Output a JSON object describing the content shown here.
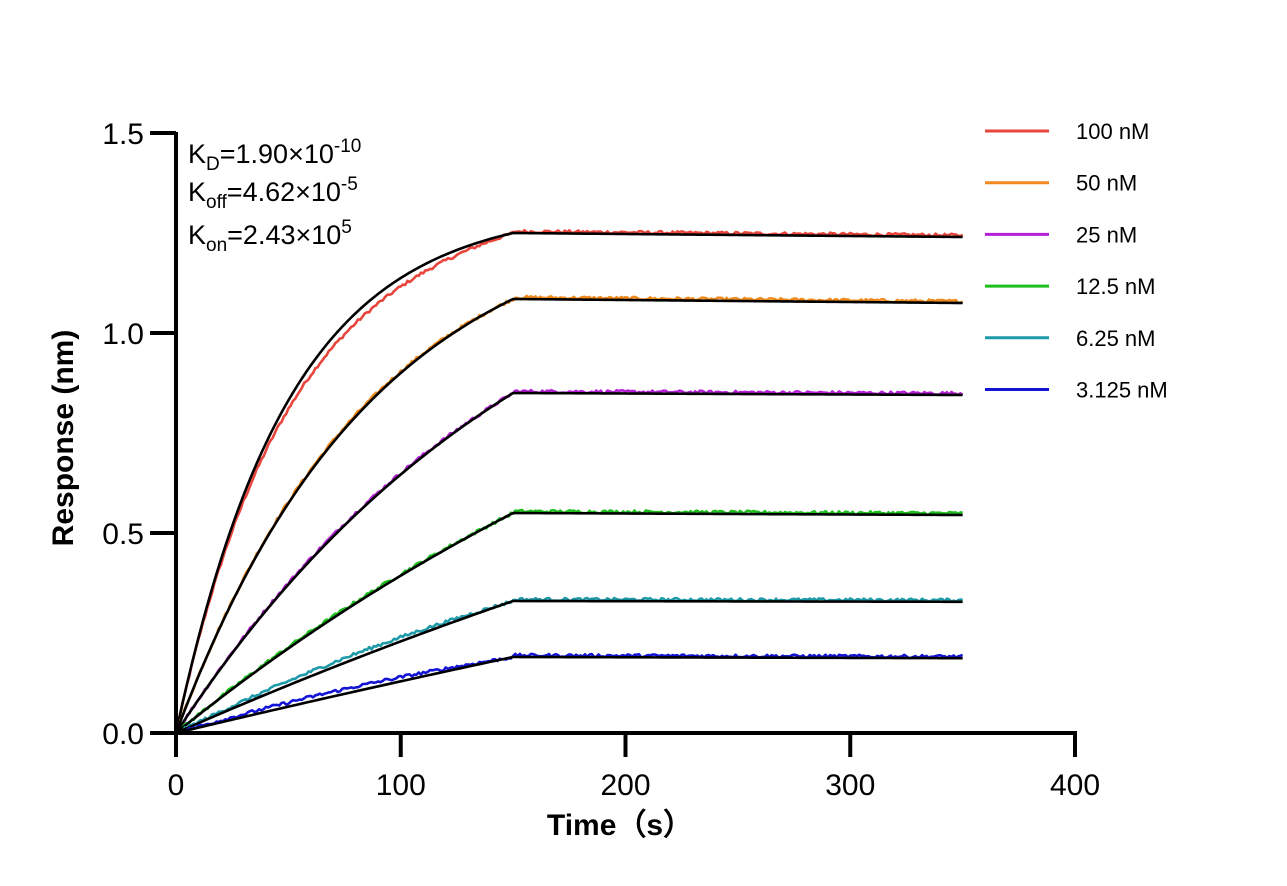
{
  "chart_data": {
    "type": "line",
    "title": "",
    "xlabel": "Time（s）",
    "ylabel": "Response (nm)",
    "xlim": [
      0,
      400
    ],
    "ylim": [
      0,
      1.5
    ],
    "xticks": [
      "0",
      "100",
      "200",
      "300",
      "400"
    ],
    "yticks": [
      "0.0",
      "0.5",
      "1.0",
      "1.5"
    ],
    "association_end": 150,
    "dissociation_end": 350,
    "legend_position": "top-right",
    "grid": false,
    "annotations": {
      "kd": {
        "main": "K",
        "sub": "D",
        "value": "=1.90×10",
        "exp": "-10"
      },
      "koff": {
        "main": "K",
        "sub": "off",
        "value": "=4.62×10",
        "exp": "-5"
      },
      "kon": {
        "main": "K",
        "sub": "on",
        "value": "=2.43×10",
        "exp": "5"
      }
    },
    "fit_color": "#000000",
    "series": [
      {
        "name": "100 nM",
        "color": "#e8453c",
        "plateau_end_of_association": 1.25,
        "end_of_dissociation": 1.24,
        "curvature": 3.0
      },
      {
        "name": "50 nM",
        "color": "#f08a1c",
        "plateau_end_of_association": 1.085,
        "end_of_dissociation": 1.075,
        "curvature": 1.7
      },
      {
        "name": "25 nM",
        "color": "#b51fd6",
        "plateau_end_of_association": 0.85,
        "end_of_dissociation": 0.845,
        "curvature": 0.9
      },
      {
        "name": "12.5 nM",
        "color": "#1cbf1c",
        "plateau_end_of_association": 0.55,
        "end_of_dissociation": 0.545,
        "curvature": 0.45
      },
      {
        "name": "6.25 nM",
        "color": "#1f9aa8",
        "plateau_end_of_association": 0.33,
        "end_of_dissociation": 0.328,
        "curvature": 0.25
      },
      {
        "name": "3.125 nM",
        "color": "#1414d6",
        "plateau_end_of_association": 0.19,
        "end_of_dissociation": 0.187,
        "curvature": 0.12
      }
    ]
  }
}
